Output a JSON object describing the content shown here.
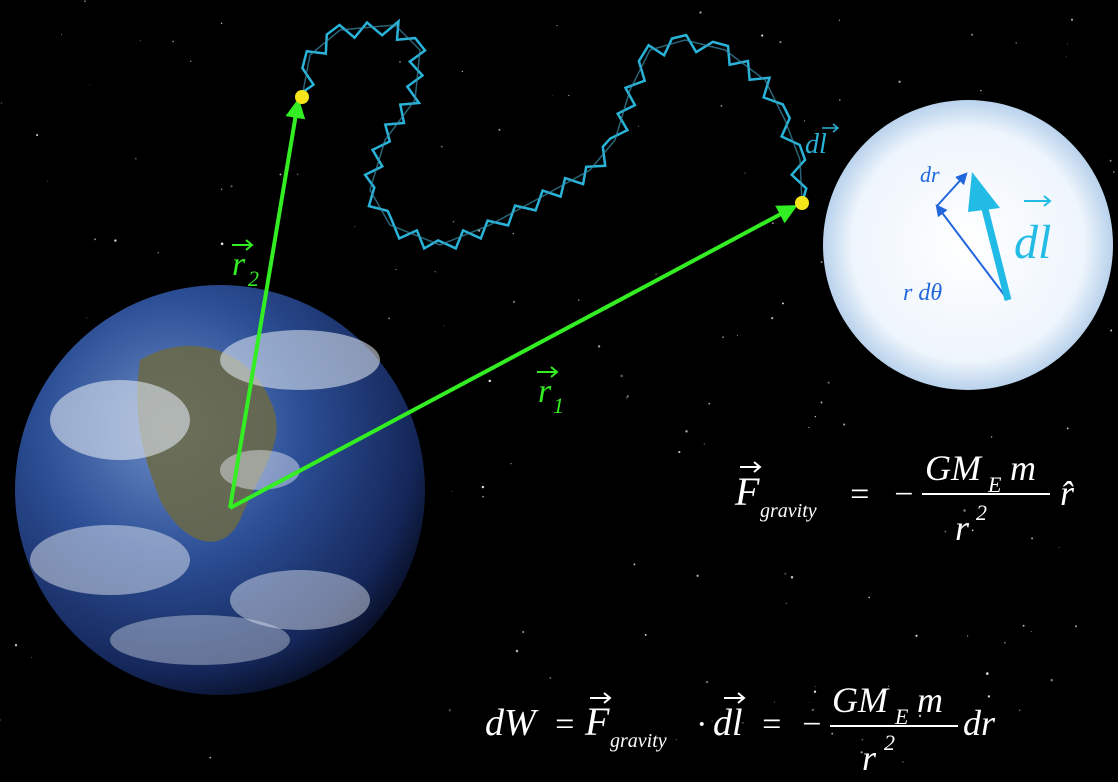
{
  "vectors": {
    "r2": {
      "symbol": "r",
      "subscript": "2"
    },
    "r1": {
      "symbol": "r",
      "subscript": "1"
    },
    "path_label": "dl"
  },
  "inset": {
    "dr": "dr",
    "r_dtheta": "r dθ",
    "dl": "dl"
  },
  "equation_force": {
    "F": "F",
    "F_sub": "gravity",
    "equals": "=",
    "minus": "−",
    "numerator": "GM",
    "numerator_sub": "E",
    "numerator_m": "m",
    "denominator": "r",
    "denominator_exp": "2",
    "unit": "r̂"
  },
  "equation_work": {
    "lhs": "dW",
    "equals1": "=",
    "F": "F",
    "F_sub": "gravity",
    "dot": "·",
    "dl": "dl",
    "equals2": "=",
    "minus": "−",
    "numerator": "GM",
    "numerator_sub": "E",
    "numerator_m": "m",
    "denominator": "r",
    "denominator_exp": "2",
    "dr": "dr"
  }
}
